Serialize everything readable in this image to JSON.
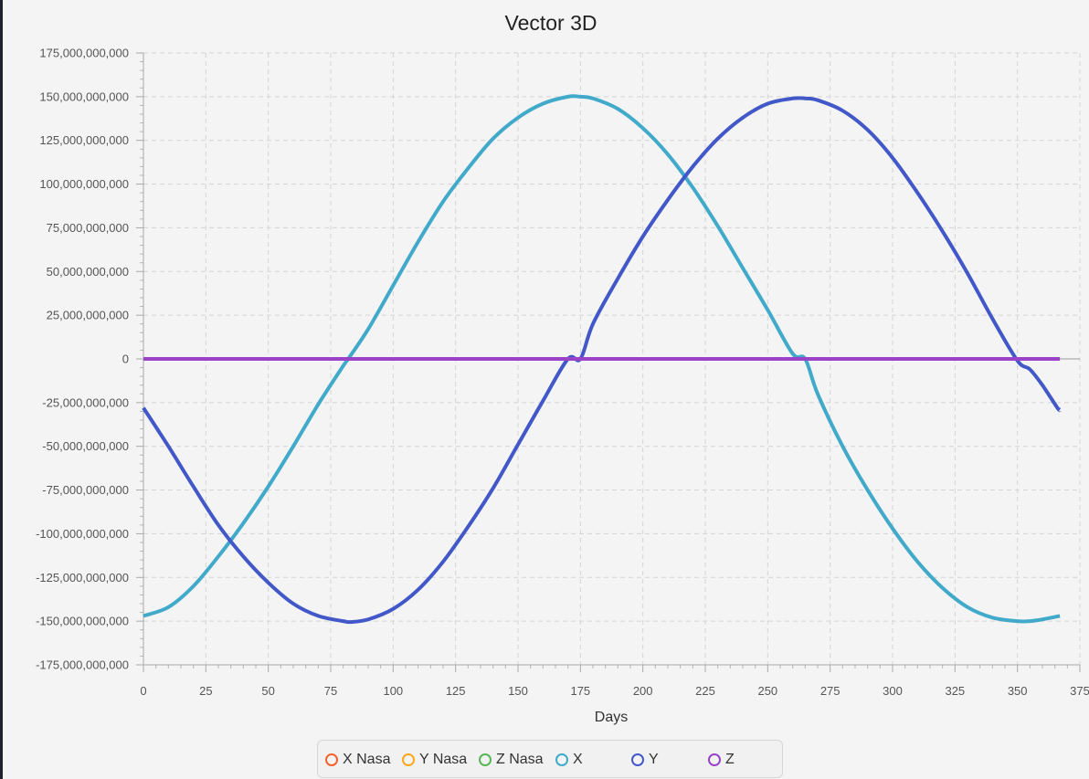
{
  "chart_data": {
    "type": "line",
    "title": "Vector 3D",
    "xlabel": "Days",
    "ylabel": "",
    "xlim": [
      0,
      375
    ],
    "ylim": [
      -175000000000,
      175000000000
    ],
    "x_ticks": [
      0,
      25,
      50,
      75,
      100,
      125,
      150,
      175,
      200,
      225,
      250,
      275,
      300,
      325,
      350,
      375
    ],
    "x_tick_labels": [
      "0",
      "25",
      "50",
      "75",
      "100",
      "125",
      "150",
      "175",
      "200",
      "225",
      "250",
      "275",
      "300",
      "325",
      "350",
      "375"
    ],
    "y_ticks": [
      175000000000,
      150000000000,
      125000000000,
      100000000000,
      75000000000,
      50000000000,
      25000000000,
      0,
      -25000000000,
      -50000000000,
      -75000000000,
      -100000000000,
      -125000000000,
      -150000000000,
      -175000000000
    ],
    "y_tick_labels": [
      "175,000,000,000",
      "150,000,000,000",
      "125,000,000,000",
      "100,000,000,000",
      "75,000,000,000",
      "50,000,000,000",
      "25,000,000,000",
      "0",
      "-25,000,000,000",
      "-50,000,000,000",
      "-75,000,000,000",
      "-100,000,000,000",
      "-125,000,000,000",
      "-150,000,000,000",
      "-175,000,000,000"
    ],
    "grid": true,
    "legend_position": "bottom",
    "series": [
      {
        "name": "X Nasa",
        "color": "#f3622d",
        "x": [],
        "values": []
      },
      {
        "name": "Y Nasa",
        "color": "#fba71b",
        "x": [],
        "values": []
      },
      {
        "name": "Z Nasa",
        "color": "#57b757",
        "x": [],
        "values": []
      },
      {
        "name": "X",
        "color": "#41a9c9",
        "x": [
          0,
          10,
          20,
          30,
          40,
          50,
          60,
          70,
          80,
          82,
          90,
          100,
          110,
          120,
          130,
          140,
          150,
          160,
          170,
          175,
          180,
          190,
          200,
          210,
          220,
          230,
          240,
          250,
          260,
          265,
          270,
          280,
          290,
          300,
          310,
          320,
          330,
          340,
          350,
          355,
          360,
          367
        ],
        "values": [
          -147000000000,
          -142000000000,
          -130000000000,
          -113000000000,
          -94000000000,
          -73000000000,
          -50000000000,
          -26000000000,
          -4000000000,
          0,
          17000000000,
          42000000000,
          67000000000,
          90000000000,
          109000000000,
          126000000000,
          138000000000,
          146000000000,
          150000000000,
          150000000000,
          149000000000,
          143000000000,
          132000000000,
          117000000000,
          98000000000,
          76000000000,
          52000000000,
          28000000000,
          3000000000,
          0,
          -20000000000,
          -50000000000,
          -75000000000,
          -97000000000,
          -116000000000,
          -131000000000,
          -142000000000,
          -148000000000,
          -150000000000,
          -150000000000,
          -149000000000,
          -147000000000
        ]
      },
      {
        "name": "Y",
        "color": "#4258c9",
        "x": [
          0,
          10,
          20,
          30,
          40,
          50,
          60,
          70,
          80,
          83,
          90,
          100,
          110,
          120,
          130,
          140,
          150,
          160,
          170,
          175,
          180,
          190,
          200,
          210,
          220,
          230,
          240,
          250,
          260,
          265,
          270,
          280,
          290,
          300,
          310,
          320,
          330,
          340,
          350,
          355,
          360,
          366,
          367
        ],
        "values": [
          -28000000000,
          -50000000000,
          -73000000000,
          -95000000000,
          -113000000000,
          -128000000000,
          -140000000000,
          -147000000000,
          -150000000000,
          -150500000000,
          -149000000000,
          -143000000000,
          -132000000000,
          -116000000000,
          -96000000000,
          -74000000000,
          -49000000000,
          -24000000000,
          0,
          0,
          20000000000,
          46000000000,
          70000000000,
          91000000000,
          110000000000,
          126000000000,
          138000000000,
          146000000000,
          149000000000,
          149000000000,
          148000000000,
          142000000000,
          131000000000,
          115000000000,
          95000000000,
          73000000000,
          49000000000,
          23000000000,
          -1000000000,
          -6000000000,
          -15000000000,
          -28000000000,
          -29000000000
        ]
      },
      {
        "name": "Z",
        "color": "#9a42c8",
        "x": [
          0,
          367
        ],
        "values": [
          0,
          0
        ]
      }
    ]
  }
}
